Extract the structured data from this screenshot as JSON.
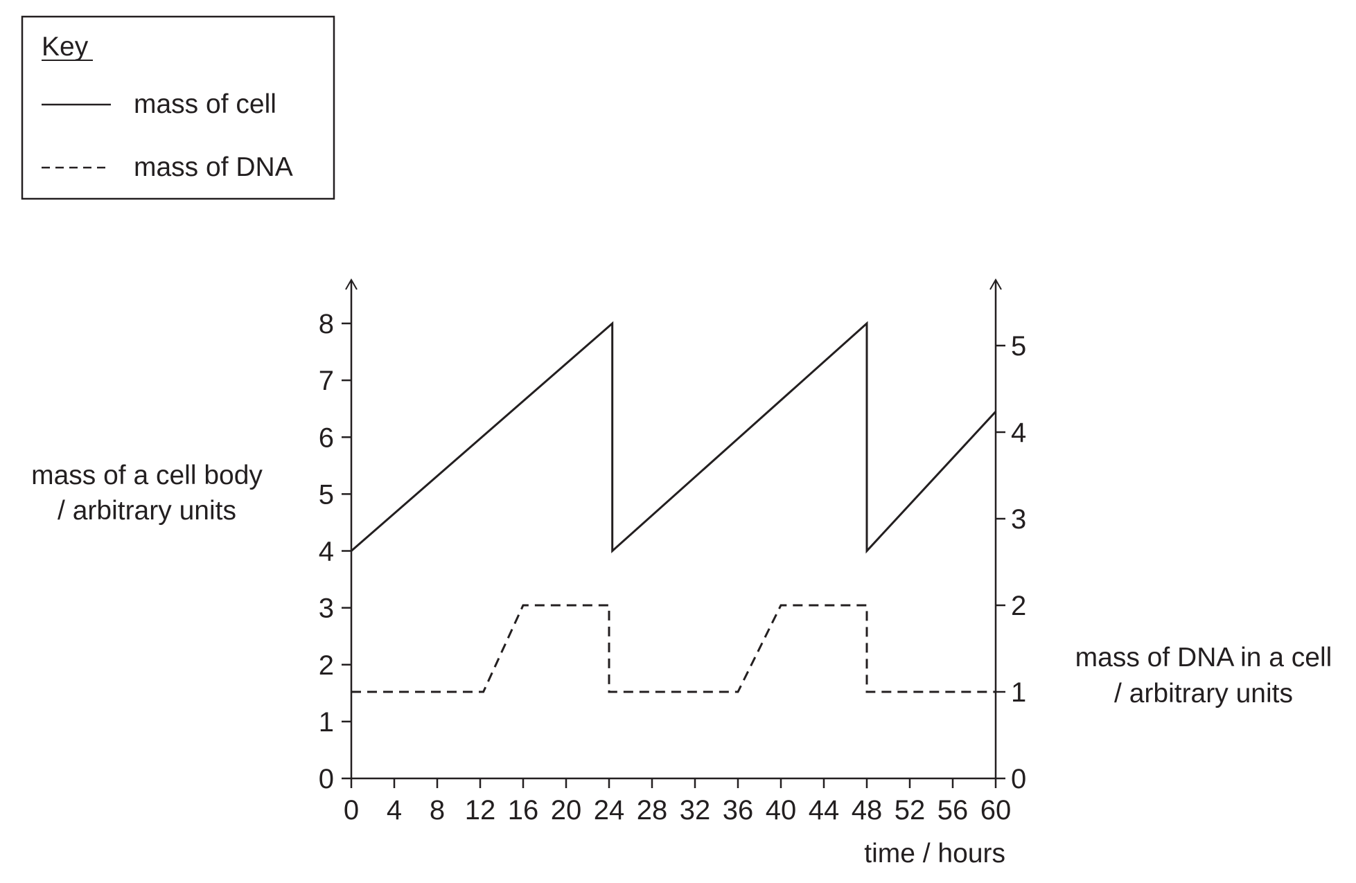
{
  "chart_data": {
    "type": "line",
    "key": {
      "title": "Key",
      "entries": [
        {
          "label": "mass of cell",
          "style": "solid"
        },
        {
          "label": "mass of DNA",
          "style": "dashed"
        }
      ]
    },
    "xlabel": "time / hours",
    "ylabel_left": [
      "mass of a cell body",
      "/ arbitrary units"
    ],
    "ylabel_right": [
      "mass of DNA in a cell",
      "/ arbitrary units"
    ],
    "x_ticks": [
      0,
      4,
      8,
      12,
      16,
      20,
      24,
      28,
      32,
      36,
      40,
      44,
      48,
      52,
      56,
      60
    ],
    "y_left_ticks": [
      0,
      1,
      2,
      3,
      4,
      5,
      6,
      7,
      8
    ],
    "y_right_ticks": [
      0,
      1,
      2,
      3,
      4,
      5
    ],
    "xlim": [
      0,
      60
    ],
    "ylim_left": [
      0,
      8
    ],
    "ylim_right": [
      0,
      5
    ],
    "grid": false,
    "series": [
      {
        "name": "mass of cell",
        "axis": "left",
        "style": "solid",
        "x": [
          0,
          24.3,
          24.3,
          48,
          48,
          60
        ],
        "y": [
          4,
          8,
          4,
          8,
          4,
          6.45
        ]
      },
      {
        "name": "mass of DNA",
        "axis": "right",
        "style": "dashed",
        "x": [
          0,
          12.3,
          16,
          24,
          24,
          36,
          40,
          48,
          48,
          60
        ],
        "y": [
          1,
          1,
          2,
          2,
          1,
          1,
          2,
          2,
          1,
          1
        ]
      }
    ],
    "colors": {
      "ink": "#231f20"
    }
  }
}
